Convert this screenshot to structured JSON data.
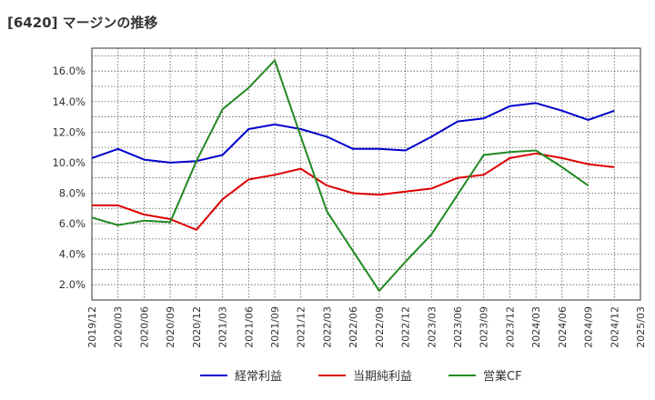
{
  "title": "[6420]  マージンの推移",
  "chart_data": {
    "type": "line",
    "x": [
      "2019/12",
      "2020/03",
      "2020/06",
      "2020/09",
      "2020/12",
      "2021/03",
      "2021/06",
      "2021/09",
      "2021/12",
      "2022/03",
      "2022/06",
      "2022/09",
      "2022/12",
      "2023/03",
      "2023/06",
      "2023/09",
      "2023/12",
      "2024/03",
      "2024/06",
      "2024/09",
      "2024/12",
      "2025/03"
    ],
    "y_ticks": [
      "2.0%",
      "4.0%",
      "6.0%",
      "8.0%",
      "10.0%",
      "12.0%",
      "14.0%",
      "16.0%"
    ],
    "ylim": [
      1.0,
      17.5
    ],
    "grid": true,
    "legend_position": "bottom",
    "series": [
      {
        "name": "経常利益",
        "color": "#0000cc",
        "values": [
          10.3,
          10.9,
          10.2,
          10.0,
          10.1,
          10.5,
          12.2,
          12.5,
          12.2,
          11.7,
          10.9,
          10.9,
          10.8,
          11.7,
          12.7,
          12.9,
          13.7,
          13.9,
          13.4,
          12.8,
          13.4,
          null
        ]
      },
      {
        "name": "当期純利益",
        "color": "#dd0000",
        "values": [
          7.2,
          7.2,
          6.6,
          6.3,
          5.6,
          7.6,
          8.9,
          9.2,
          9.6,
          8.5,
          8.0,
          7.9,
          8.1,
          8.3,
          9.0,
          9.2,
          10.3,
          10.6,
          10.3,
          9.9,
          9.7,
          null
        ]
      },
      {
        "name": "営業CF",
        "color": "#228822",
        "values": [
          6.4,
          5.9,
          6.2,
          6.1,
          10.1,
          13.5,
          14.9,
          16.7,
          11.7,
          6.8,
          4.2,
          1.6,
          3.5,
          5.3,
          7.9,
          10.5,
          10.7,
          10.8,
          9.7,
          8.5,
          null,
          null
        ]
      }
    ]
  }
}
